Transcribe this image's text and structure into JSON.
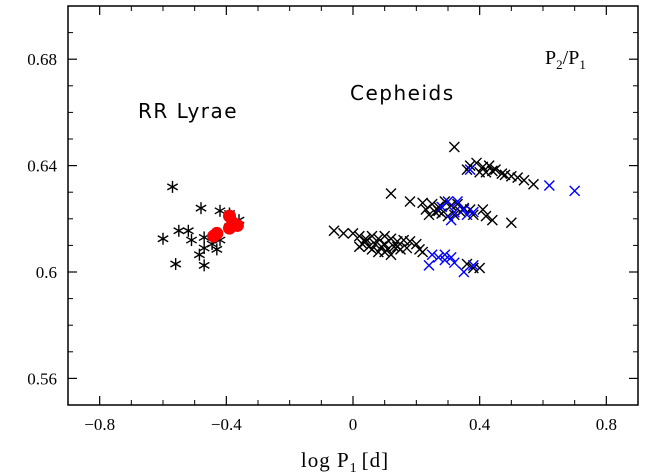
{
  "chart_data": {
    "type": "scatter",
    "title": "",
    "xlabel": {
      "main": "log P",
      "sub": "1",
      "unit": "[d]"
    },
    "ylabel": "",
    "xlim": [
      -0.9,
      0.9
    ],
    "ylim": [
      0.55,
      0.7
    ],
    "x_ticks": [
      -0.8,
      -0.4,
      0.0,
      0.4,
      0.8
    ],
    "x_tick_labels": [
      "−0.8",
      "−0.4",
      "0",
      "0.4",
      "0.8"
    ],
    "y_ticks": [
      0.56,
      0.6,
      0.64,
      0.68
    ],
    "y_tick_labels": [
      "0.56",
      "0.6",
      "0.64",
      "0.68"
    ],
    "grid": false,
    "annotations": [
      {
        "text": "RR Lyrae",
        "x": -0.68,
        "y": 0.66
      },
      {
        "text": "Cepheids",
        "x": -0.05,
        "y": 0.666
      }
    ],
    "ratio_label": {
      "a": "P",
      "a_sub": "2",
      "sep": "/",
      "b": "P",
      "b_sub": "1"
    },
    "series": [
      {
        "marker": "asterisk",
        "color": "#000000",
        "points": [
          [
            -0.57,
            0.632
          ],
          [
            -0.48,
            0.624
          ],
          [
            -0.42,
            0.623
          ],
          [
            -0.39,
            0.622
          ],
          [
            -0.6,
            0.6125
          ],
          [
            -0.55,
            0.6155
          ],
          [
            -0.52,
            0.6155
          ],
          [
            -0.51,
            0.612
          ],
          [
            -0.47,
            0.613
          ],
          [
            -0.47,
            0.609
          ],
          [
            -0.445,
            0.6105
          ],
          [
            -0.42,
            0.612
          ],
          [
            -0.43,
            0.6085
          ],
          [
            -0.485,
            0.6065
          ],
          [
            -0.56,
            0.603
          ],
          [
            -0.47,
            0.6025
          ],
          [
            -0.36,
            0.6195
          ],
          [
            -0.39,
            0.617
          ]
        ]
      },
      {
        "marker": "filled-circle",
        "color": "#ff0000",
        "points": [
          [
            -0.39,
            0.621
          ],
          [
            -0.38,
            0.6185
          ],
          [
            -0.365,
            0.6175
          ],
          [
            -0.39,
            0.6165
          ],
          [
            -0.43,
            0.6145
          ],
          [
            -0.44,
            0.6135
          ]
        ]
      },
      {
        "marker": "cross",
        "color": "#000000",
        "points": [
          [
            0.32,
            0.647
          ],
          [
            0.37,
            0.64
          ],
          [
            0.39,
            0.641
          ],
          [
            0.41,
            0.6395
          ],
          [
            0.43,
            0.64
          ],
          [
            0.44,
            0.638
          ],
          [
            0.45,
            0.6385
          ],
          [
            0.47,
            0.637
          ],
          [
            0.48,
            0.6365
          ],
          [
            0.42,
            0.6375
          ],
          [
            0.36,
            0.6385
          ],
          [
            0.52,
            0.6355
          ],
          [
            0.54,
            0.6345
          ],
          [
            0.57,
            0.633
          ],
          [
            0.5,
            0.636
          ],
          [
            0.4,
            0.6375
          ],
          [
            0.12,
            0.6295
          ],
          [
            0.18,
            0.6265
          ],
          [
            0.22,
            0.626
          ],
          [
            0.25,
            0.6255
          ],
          [
            0.27,
            0.6245
          ],
          [
            0.29,
            0.6265
          ],
          [
            0.31,
            0.625
          ],
          [
            0.33,
            0.6255
          ],
          [
            0.35,
            0.624
          ],
          [
            0.37,
            0.6235
          ],
          [
            0.41,
            0.6235
          ],
          [
            0.23,
            0.6235
          ],
          [
            0.26,
            0.6225
          ],
          [
            0.28,
            0.622
          ],
          [
            0.3,
            0.621
          ],
          [
            0.32,
            0.6215
          ],
          [
            0.34,
            0.6225
          ],
          [
            0.38,
            0.6215
          ],
          [
            0.42,
            0.621
          ],
          [
            0.44,
            0.6195
          ],
          [
            0.5,
            0.6185
          ],
          [
            0.24,
            0.6215
          ],
          [
            0.27,
            0.623
          ],
          [
            -0.06,
            0.6155
          ],
          [
            -0.03,
            0.6145
          ],
          [
            0.0,
            0.6145
          ],
          [
            0.02,
            0.6135
          ],
          [
            0.04,
            0.6125
          ],
          [
            0.06,
            0.6135
          ],
          [
            0.08,
            0.6125
          ],
          [
            0.1,
            0.6135
          ],
          [
            0.12,
            0.6125
          ],
          [
            0.14,
            0.6115
          ],
          [
            0.16,
            0.612
          ],
          [
            0.18,
            0.6115
          ],
          [
            0.2,
            0.6105
          ],
          [
            0.03,
            0.6105
          ],
          [
            0.05,
            0.6095
          ],
          [
            0.07,
            0.6105
          ],
          [
            0.09,
            0.6095
          ],
          [
            0.11,
            0.6085
          ],
          [
            0.13,
            0.6095
          ],
          [
            0.15,
            0.6085
          ],
          [
            0.17,
            0.609
          ],
          [
            0.08,
            0.6075
          ],
          [
            0.1,
            0.6075
          ],
          [
            0.12,
            0.6065
          ],
          [
            0.06,
            0.6085
          ],
          [
            0.04,
            0.6115
          ],
          [
            0.21,
            0.6085
          ],
          [
            0.22,
            0.6075
          ],
          [
            0.02,
            0.6095
          ],
          [
            0.1,
            0.6105
          ],
          [
            0.14,
            0.6095
          ],
          [
            0.38,
            0.6015
          ],
          [
            0.4,
            0.6015
          ],
          [
            0.36,
            0.603
          ]
        ]
      },
      {
        "marker": "cross",
        "color": "#0000ff",
        "points": [
          [
            0.37,
            0.6385
          ],
          [
            0.62,
            0.6325
          ],
          [
            0.7,
            0.6305
          ],
          [
            0.33,
            0.6265
          ],
          [
            0.3,
            0.6265
          ],
          [
            0.28,
            0.6245
          ],
          [
            0.32,
            0.6225
          ],
          [
            0.35,
            0.6235
          ],
          [
            0.38,
            0.6225
          ],
          [
            0.31,
            0.6195
          ],
          [
            0.36,
            0.6215
          ],
          [
            0.25,
            0.6065
          ],
          [
            0.27,
            0.6055
          ],
          [
            0.29,
            0.6045
          ],
          [
            0.31,
            0.6055
          ],
          [
            0.32,
            0.6035
          ],
          [
            0.24,
            0.6025
          ],
          [
            0.35,
            0.6
          ],
          [
            0.38,
            0.6025
          ],
          [
            0.29,
            0.6065
          ]
        ]
      }
    ]
  }
}
